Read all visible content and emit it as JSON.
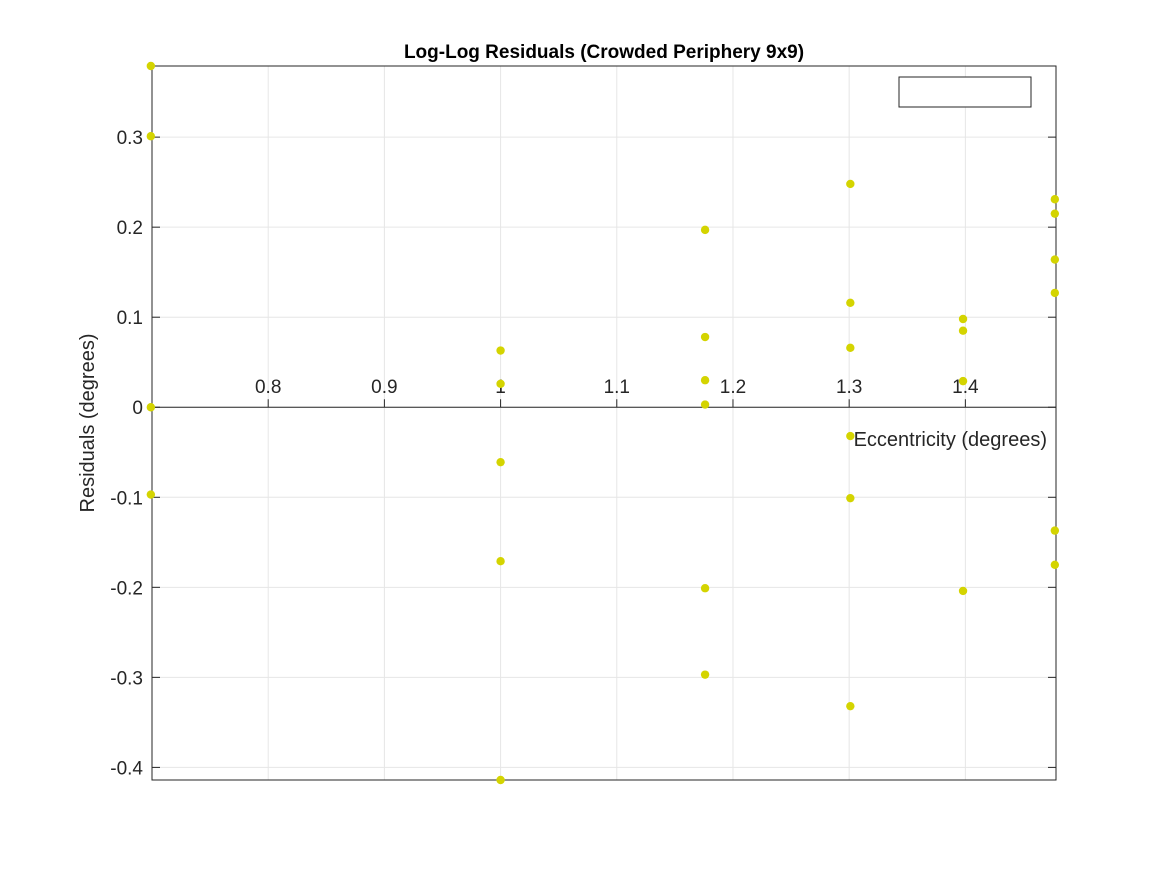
{
  "chart_data": {
    "type": "scatter",
    "title": "Log-Log Residuals (Crowded Periphery 9x9)",
    "xlabel": "Eccentricity (degrees)",
    "ylabel": "Residuals (degrees)",
    "xlim": [
      0.7,
      1.478
    ],
    "ylim": [
      -0.414,
      0.379
    ],
    "xticks": [
      0.8,
      0.9,
      1,
      1.1,
      1.2,
      1.3,
      1.4
    ],
    "xtick_labels": [
      "0.8",
      "0.9",
      "1",
      "1.1",
      "1.2",
      "1.3",
      "1.4"
    ],
    "yticks": [
      -0.4,
      -0.3,
      -0.2,
      -0.1,
      0,
      0.1,
      0.2,
      0.3
    ],
    "ytick_labels": [
      "-0.4",
      "-0.3",
      "-0.2",
      "-0.1",
      "0",
      "0.1",
      "0.2",
      "0.3"
    ],
    "grid": true,
    "axis_location": "origin",
    "legend": "top-right, empty",
    "marker_color": "#d4d400",
    "points": [
      {
        "x": 0.699,
        "y": 0.379
      },
      {
        "x": 0.699,
        "y": 0.301
      },
      {
        "x": 0.699,
        "y": 0.0
      },
      {
        "x": 0.699,
        "y": -0.097
      },
      {
        "x": 1.0,
        "y": 0.063
      },
      {
        "x": 1.0,
        "y": 0.026
      },
      {
        "x": 1.0,
        "y": -0.061
      },
      {
        "x": 1.0,
        "y": -0.171
      },
      {
        "x": 1.0,
        "y": -0.414
      },
      {
        "x": 1.176,
        "y": 0.197
      },
      {
        "x": 1.176,
        "y": 0.078
      },
      {
        "x": 1.176,
        "y": 0.03
      },
      {
        "x": 1.176,
        "y": 0.003
      },
      {
        "x": 1.176,
        "y": -0.201
      },
      {
        "x": 1.176,
        "y": -0.297
      },
      {
        "x": 1.301,
        "y": 0.248
      },
      {
        "x": 1.301,
        "y": 0.116
      },
      {
        "x": 1.301,
        "y": 0.066
      },
      {
        "x": 1.301,
        "y": -0.032
      },
      {
        "x": 1.301,
        "y": -0.101
      },
      {
        "x": 1.301,
        "y": -0.332
      },
      {
        "x": 1.398,
        "y": 0.098
      },
      {
        "x": 1.398,
        "y": 0.085
      },
      {
        "x": 1.398,
        "y": 0.029
      },
      {
        "x": 1.398,
        "y": -0.204
      },
      {
        "x": 1.477,
        "y": 0.231
      },
      {
        "x": 1.477,
        "y": 0.215
      },
      {
        "x": 1.477,
        "y": 0.164
      },
      {
        "x": 1.477,
        "y": 0.127
      },
      {
        "x": 1.477,
        "y": -0.137
      },
      {
        "x": 1.477,
        "y": -0.175
      }
    ]
  }
}
